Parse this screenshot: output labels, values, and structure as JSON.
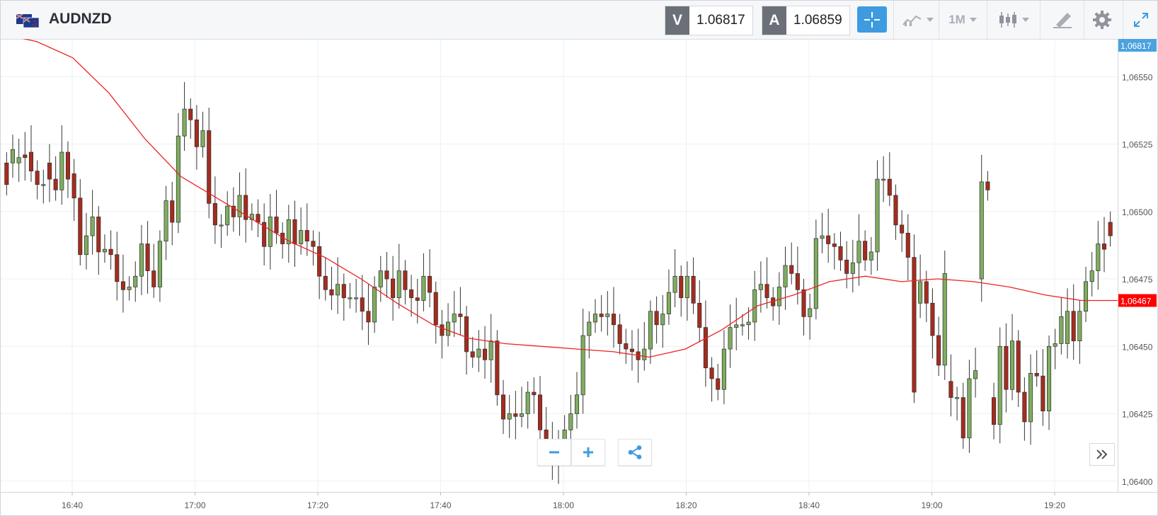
{
  "header": {
    "symbol": "AUDNZD",
    "bid_tag": "V",
    "bid_value": "1.06817",
    "ask_tag": "A",
    "ask_value": "1.06859",
    "timeframe": "1M"
  },
  "icons": [
    "flag-icon",
    "crosshair-icon",
    "indicators-icon",
    "candle-type-icon",
    "draw-icon",
    "settings-icon",
    "fullscreen-icon",
    "zoom-out-icon",
    "zoom-in-icon",
    "share-icon",
    "scroll-right-icon"
  ],
  "colors": {
    "up": "#7ead5f",
    "down": "#a52c1e",
    "ma": "#ee2222",
    "accent": "#3e9be0",
    "bid_label_bg": "#4aa3df",
    "ma_label_bg": "#ff0000"
  },
  "chart_data": {
    "type": "candlestick",
    "title": "AUDNZD",
    "interval": "1M",
    "ylim": [
      1.06396,
      1.06564
    ],
    "x_ticks": [
      "16:40",
      "17:00",
      "17:20",
      "17:40",
      "18:00",
      "18:20",
      "18:40",
      "19:00",
      "19:20"
    ],
    "y_ticks": [
      "1,06550",
      "1,06525",
      "1,06500",
      "1,06475",
      "1,06450",
      "1,06425",
      "1,06400"
    ],
    "current_price_label": "1,06817",
    "ma_price_label": "1,06467",
    "candles_close": [
      1.0651,
      1.06523,
      1.0652,
      1.0652,
      1.06515,
      1.0651,
      1.0651,
      1.06512,
      1.06508,
      1.06522,
      1.06512,
      1.06505,
      1.06484,
      1.06491,
      1.06498,
      1.06485,
      1.06486,
      1.06484,
      1.06474,
      1.06471,
      1.06472,
      1.06476,
      1.06488,
      1.06478,
      1.06472,
      1.06489,
      1.06504,
      1.06496,
      1.06528,
      1.06538,
      1.06534,
      1.06524,
      1.0653,
      1.06503,
      1.06495,
      1.06495,
      1.06502,
      1.06498,
      1.06506,
      1.06497,
      1.06499,
      1.06496,
      1.06487,
      1.06498,
      1.06492,
      1.06488,
      1.06497,
      1.06488,
      1.06493,
      1.06489,
      1.06487,
      1.06476,
      1.06471,
      1.06469,
      1.06473,
      1.06468,
      1.06468,
      1.06468,
      1.06463,
      1.06459,
      1.06472,
      1.06478,
      1.06475,
      1.06468,
      1.06478,
      1.06471,
      1.06468,
      1.06467,
      1.06476,
      1.0647,
      1.06458,
      1.06454,
      1.06459,
      1.06462,
      1.06461,
      1.06448,
      1.06446,
      1.06449,
      1.06445,
      1.06452,
      1.06432,
      1.06423,
      1.06425,
      1.06424,
      1.06425,
      1.06433,
      1.06432,
      1.06419,
      1.06412,
      1.06406,
      1.06415,
      1.06419,
      1.06425,
      1.06432,
      1.06454,
      1.06459,
      1.06462,
      1.06461,
      1.06462,
      1.06458,
      1.06451,
      1.06449,
      1.06448,
      1.06445,
      1.06449,
      1.06463,
      1.06458,
      1.06462,
      1.0647,
      1.06476,
      1.06468,
      1.06476,
      1.06466,
      1.06457,
      1.06442,
      1.06438,
      1.06434,
      1.06449,
      1.06457,
      1.06458,
      1.06458,
      1.06459,
      1.06471,
      1.06473,
      1.06468,
      1.06465,
      1.06472,
      1.0648,
      1.06477,
      1.06471,
      1.06461,
      1.06464,
      1.0649,
      1.06491,
      1.06488,
      1.06487,
      1.06482,
      1.06477,
      1.06481,
      1.06489,
      1.06482,
      1.06485,
      1.06512,
      1.06512,
      1.06506,
      1.06495,
      1.06492,
      1.06483,
      1.06433,
      1.06474,
      1.06466,
      1.06454,
      1.06443,
      1.06477,
      1.06431,
      1.06431,
      1.06416,
      1.06438,
      1.06441,
      1.06511,
      1.06508,
      1.06421,
      1.0645,
      1.06434,
      1.06452,
      1.06433,
      1.06422,
      1.0644,
      1.06439,
      1.06426,
      1.0645,
      1.06451,
      1.06461,
      1.06463,
      1.06452,
      1.06463,
      1.06474,
      1.06478,
      1.06488,
      1.06486,
      1.06491
    ],
    "candles_open": [
      1.06518,
      1.06518,
      1.06518,
      1.06521,
      1.06522,
      1.06515,
      1.0651,
      1.06518,
      1.06512,
      1.06508,
      1.06522,
      1.06514,
      1.06505,
      1.06484,
      1.06491,
      1.06498,
      1.06485,
      1.06486,
      1.06484,
      1.06474,
      1.06471,
      1.06472,
      1.06476,
      1.06488,
      1.06478,
      1.06472,
      1.06489,
      1.06504,
      1.06496,
      1.06528,
      1.06538,
      1.06534,
      1.06524,
      1.0653,
      1.06503,
      1.06495,
      1.06495,
      1.06502,
      1.06498,
      1.06506,
      1.06497,
      1.06499,
      1.06496,
      1.06487,
      1.06498,
      1.06492,
      1.06488,
      1.06497,
      1.06488,
      1.06493,
      1.06489,
      1.06487,
      1.06476,
      1.06471,
      1.06469,
      1.06473,
      1.06468,
      1.06468,
      1.06468,
      1.06463,
      1.06459,
      1.06472,
      1.06478,
      1.06475,
      1.06468,
      1.06478,
      1.06471,
      1.06468,
      1.06467,
      1.06476,
      1.0647,
      1.06458,
      1.06454,
      1.06459,
      1.06462,
      1.06461,
      1.06448,
      1.06446,
      1.06449,
      1.06445,
      1.06452,
      1.06432,
      1.06423,
      1.06425,
      1.06424,
      1.06425,
      1.06433,
      1.06432,
      1.06419,
      1.06412,
      1.06406,
      1.06415,
      1.06419,
      1.06425,
      1.06432,
      1.06454,
      1.06459,
      1.06462,
      1.06461,
      1.06462,
      1.06458,
      1.06451,
      1.06449,
      1.06448,
      1.06445,
      1.06449,
      1.06463,
      1.06458,
      1.06462,
      1.0647,
      1.06476,
      1.06468,
      1.06476,
      1.06466,
      1.06457,
      1.06442,
      1.06438,
      1.06434,
      1.06449,
      1.06457,
      1.06458,
      1.06458,
      1.06459,
      1.06471,
      1.06473,
      1.06468,
      1.06465,
      1.06472,
      1.0648,
      1.06477,
      1.06471,
      1.06461,
      1.06464,
      1.0649,
      1.06491,
      1.06488,
      1.06487,
      1.06482,
      1.06477,
      1.06481,
      1.06489,
      1.06482,
      1.06485,
      1.06512,
      1.06512,
      1.06506,
      1.06495,
      1.06492,
      1.06483,
      1.06466,
      1.06474,
      1.06466,
      1.06454,
      1.06443,
      1.06437,
      1.06431,
      1.06431,
      1.06416,
      1.06438,
      1.06475,
      1.06511,
      1.06431,
      1.06421,
      1.0645,
      1.06434,
      1.06452,
      1.06433,
      1.06422,
      1.0644,
      1.06439,
      1.06426,
      1.0645,
      1.06451,
      1.06451,
      1.06463,
      1.06452,
      1.06463,
      1.06474,
      1.06478,
      1.06488,
      1.06496
    ],
    "moving_average": [
      1.06566,
      1.06563,
      1.06557,
      1.06544,
      1.06527,
      1.06513,
      1.06505,
      1.06497,
      1.06489,
      1.06483,
      1.06475,
      1.06466,
      1.06458,
      1.06453,
      1.06451,
      1.0645,
      1.06449,
      1.06448,
      1.06446,
      1.06449,
      1.06456,
      1.06465,
      1.06469,
      1.06474,
      1.06476,
      1.06474,
      1.06475,
      1.06474,
      1.06472,
      1.06469,
      1.06467,
      1.06467
    ]
  }
}
